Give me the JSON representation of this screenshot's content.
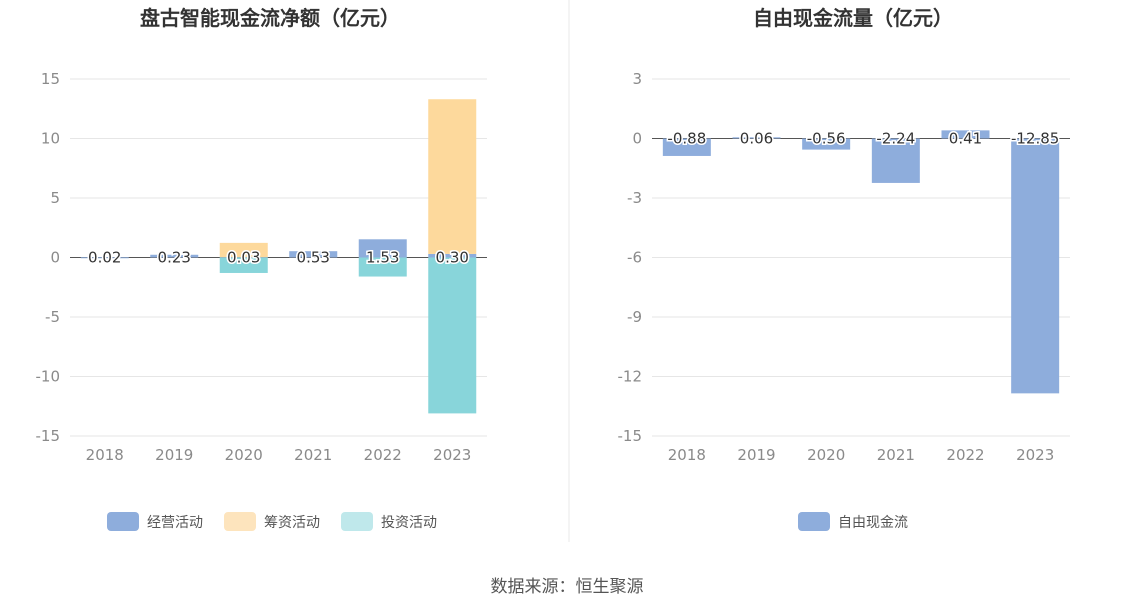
{
  "source_label": "数据来源：恒生聚源",
  "chart_data": [
    {
      "type": "bar",
      "title": "盘古智能现金流净额（亿元）",
      "categories": [
        "2018",
        "2019",
        "2020",
        "2021",
        "2022",
        "2023"
      ],
      "ylim": [
        -15,
        15
      ],
      "yticks": [
        15,
        10,
        5,
        0,
        -5,
        -10,
        -15
      ],
      "grid": true,
      "legend_position": "bottom",
      "series": [
        {
          "name": "经营活动",
          "color": "#8eaddc",
          "values": [
            0.02,
            0.23,
            0.03,
            0.53,
            1.53,
            0.3
          ]
        },
        {
          "name": "筹资活动",
          "color": "#fdd99c",
          "values": [
            0,
            0,
            1.2,
            0,
            0,
            13.0
          ]
        },
        {
          "name": "投资活动",
          "color": "#88d5da",
          "values": [
            0,
            0,
            -1.3,
            0,
            -1.6,
            -13.1
          ]
        }
      ],
      "legend_colors": [
        "#8eaddc",
        "#fde4bd",
        "#bfe8eb"
      ],
      "data_labels": [
        "0.02",
        "0.23",
        "0.03",
        "0.53",
        "1.53",
        "0.30"
      ]
    },
    {
      "type": "bar",
      "title": "自由现金流量（亿元）",
      "categories": [
        "2018",
        "2019",
        "2020",
        "2021",
        "2022",
        "2023"
      ],
      "ylim": [
        -15,
        3
      ],
      "yticks": [
        3,
        0,
        -3,
        -6,
        -9,
        -12,
        -15
      ],
      "grid": true,
      "legend_position": "bottom",
      "series": [
        {
          "name": "自由现金流",
          "color": "#8eaddc",
          "values": [
            -0.88,
            0.06,
            -0.56,
            -2.24,
            0.41,
            -12.85
          ]
        }
      ],
      "data_labels": [
        "-0.88",
        "0.06",
        "-0.56",
        "-2.24",
        "0.41",
        "-12.85"
      ]
    }
  ]
}
